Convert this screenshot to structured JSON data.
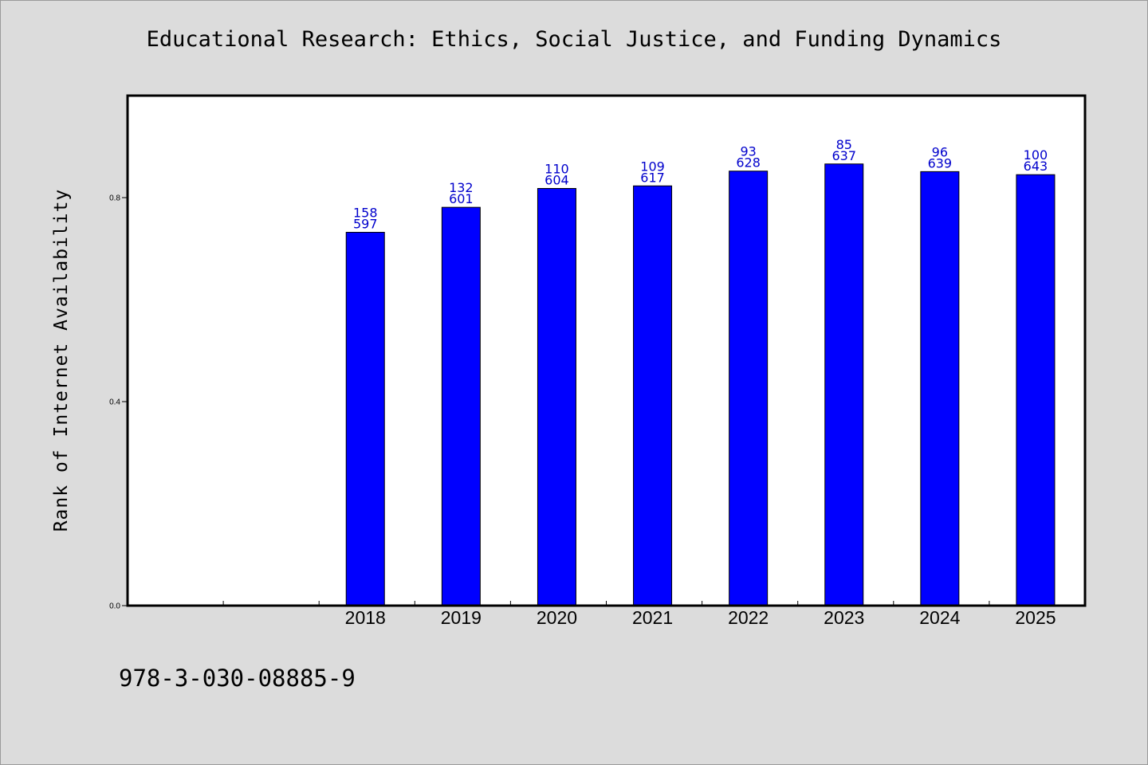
{
  "title": "Educational Research: Ethics, Social Justice, and Funding Dynamics",
  "footer_text": "978-3-030-08885-9",
  "colors": {
    "background": "#dcdcdc",
    "plot_background": "#ffffff",
    "bar": "#0000ff",
    "bar_label": "#0000cc"
  },
  "chart_data": {
    "type": "bar",
    "title": "Educational Research: Ethics, Social Justice, and Funding Dynamics",
    "xlabel": "",
    "ylabel": "Rank of Internet Availability",
    "categories": [
      "2018",
      "2019",
      "2020",
      "2021",
      "2022",
      "2023",
      "2024",
      "2025"
    ],
    "values": [
      0.732,
      0.781,
      0.818,
      0.823,
      0.852,
      0.866,
      0.851,
      0.845
    ],
    "label_top": [
      "158",
      "132",
      "110",
      "109",
      "93",
      "85",
      "96",
      "100"
    ],
    "label_bottom": [
      "597",
      "601",
      "604",
      "617",
      "628",
      "637",
      "639",
      "643"
    ],
    "ylim": [
      0.0,
      1.0
    ],
    "yticks": [
      0.0,
      0.4,
      0.8
    ],
    "ytick_labels": [
      "0.0",
      "0.4",
      "0.8"
    ],
    "legend": "none",
    "grid": false
  }
}
